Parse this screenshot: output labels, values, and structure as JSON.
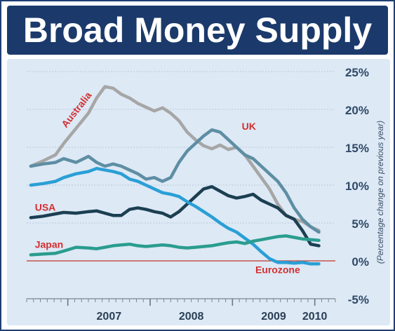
{
  "title": "Broad Money Supply",
  "chart_data": {
    "type": "line",
    "title": "Broad Money Supply",
    "xlabel": "",
    "ylabel": "(Percentage change on previous year)",
    "x_ticks": [
      "2007",
      "2008",
      "2009",
      "2010"
    ],
    "y_ticks": [
      "25%",
      "20%",
      "15%",
      "10%",
      "5%",
      "0%",
      "-5%"
    ],
    "ylim": [
      -5,
      25
    ],
    "xlim": [
      2006.5,
      2010.25
    ],
    "grid": "horizontal dashed",
    "zero_line_color": "#c0392b",
    "series": [
      {
        "name": "Australia",
        "color": "#a6a6a6",
        "label_color": "#d32f2f",
        "x": [
          2006.55,
          2006.7,
          2006.85,
          2006.95,
          2007.1,
          2007.25,
          2007.35,
          2007.45,
          2007.55,
          2007.65,
          2007.75,
          2007.85,
          2007.95,
          2008.05,
          2008.15,
          2008.25,
          2008.35,
          2008.45,
          2008.55,
          2008.65,
          2008.75,
          2008.85,
          2008.95,
          2009.05,
          2009.15,
          2009.25,
          2009.35,
          2009.45,
          2009.55,
          2009.65,
          2009.75,
          2009.85,
          2009.95,
          2010.05
        ],
        "values": [
          12.5,
          13.2,
          14.0,
          15.5,
          17.5,
          19.5,
          21.5,
          23.0,
          22.8,
          22.0,
          21.5,
          20.8,
          20.3,
          19.8,
          20.2,
          19.5,
          18.5,
          17.0,
          16.0,
          15.2,
          14.8,
          15.3,
          14.7,
          15.0,
          14.0,
          12.5,
          11.0,
          9.5,
          7.5,
          6.0,
          5.5,
          5.2,
          4.5,
          4.0
        ]
      },
      {
        "name": "UK",
        "color": "#5e8ea3",
        "label_color": "#d32f2f",
        "x": [
          2006.55,
          2006.7,
          2006.85,
          2006.95,
          2007.1,
          2007.25,
          2007.35,
          2007.45,
          2007.55,
          2007.65,
          2007.75,
          2007.85,
          2007.95,
          2008.05,
          2008.15,
          2008.25,
          2008.35,
          2008.45,
          2008.55,
          2008.65,
          2008.75,
          2008.85,
          2008.95,
          2009.05,
          2009.15,
          2009.25,
          2009.35,
          2009.45,
          2009.55,
          2009.65,
          2009.75,
          2009.85,
          2009.95,
          2010.05
        ],
        "values": [
          12.5,
          12.8,
          13.0,
          13.5,
          13.0,
          13.8,
          13.0,
          12.5,
          12.8,
          12.5,
          12.0,
          11.5,
          10.8,
          11.0,
          10.5,
          11.0,
          13.0,
          14.5,
          15.5,
          16.5,
          17.3,
          17.0,
          16.0,
          15.0,
          14.0,
          13.5,
          12.5,
          11.5,
          10.5,
          9.0,
          7.0,
          5.5,
          4.5,
          3.8
        ]
      },
      {
        "name": "USA",
        "color": "#1c3f52",
        "label_color": "#d32f2f",
        "x": [
          2006.55,
          2006.7,
          2006.85,
          2006.95,
          2007.1,
          2007.25,
          2007.35,
          2007.45,
          2007.55,
          2007.65,
          2007.75,
          2007.85,
          2007.95,
          2008.05,
          2008.15,
          2008.25,
          2008.35,
          2008.45,
          2008.55,
          2008.65,
          2008.75,
          2008.85,
          2008.95,
          2009.05,
          2009.15,
          2009.25,
          2009.35,
          2009.45,
          2009.55,
          2009.65,
          2009.75,
          2009.85,
          2009.95,
          2010.05
        ],
        "values": [
          5.7,
          5.9,
          6.2,
          6.4,
          6.3,
          6.5,
          6.6,
          6.3,
          6.0,
          6.0,
          6.8,
          7.0,
          6.8,
          6.5,
          6.3,
          5.8,
          6.5,
          7.5,
          8.5,
          9.5,
          9.8,
          9.2,
          8.6,
          8.3,
          8.5,
          8.8,
          8.0,
          7.5,
          7.0,
          6.0,
          5.5,
          4.0,
          2.2,
          2.0
        ]
      },
      {
        "name": "Eurozone",
        "color": "#2a9fd6",
        "label_color": "#d32f2f",
        "x": [
          2006.55,
          2006.7,
          2006.85,
          2006.95,
          2007.1,
          2007.25,
          2007.35,
          2007.45,
          2007.55,
          2007.65,
          2007.75,
          2007.85,
          2007.95,
          2008.05,
          2008.15,
          2008.25,
          2008.35,
          2008.45,
          2008.55,
          2008.65,
          2008.75,
          2008.85,
          2008.95,
          2009.05,
          2009.15,
          2009.25,
          2009.35,
          2009.45,
          2009.55,
          2009.65,
          2009.75,
          2009.85,
          2009.95,
          2010.05
        ],
        "values": [
          10.0,
          10.2,
          10.5,
          11.0,
          11.5,
          11.8,
          12.2,
          12.0,
          11.8,
          11.5,
          10.8,
          10.5,
          10.0,
          9.5,
          9.0,
          8.8,
          8.5,
          7.8,
          7.2,
          6.5,
          5.8,
          5.0,
          4.3,
          3.8,
          3.0,
          2.2,
          1.2,
          0.3,
          -0.2,
          -0.2,
          -0.3,
          -0.2,
          -0.4,
          -0.4
        ]
      },
      {
        "name": "Japan",
        "color": "#2a9d8f",
        "label_color": "#d32f2f",
        "x": [
          2006.55,
          2006.7,
          2006.85,
          2006.95,
          2007.1,
          2007.25,
          2007.35,
          2007.45,
          2007.55,
          2007.65,
          2007.75,
          2007.85,
          2007.95,
          2008.05,
          2008.15,
          2008.25,
          2008.35,
          2008.45,
          2008.55,
          2008.65,
          2008.75,
          2008.85,
          2008.95,
          2009.05,
          2009.15,
          2009.25,
          2009.35,
          2009.45,
          2009.55,
          2009.65,
          2009.75,
          2009.85,
          2009.95,
          2010.05
        ],
        "values": [
          0.8,
          0.9,
          1.0,
          1.3,
          1.8,
          1.7,
          1.6,
          1.8,
          2.0,
          2.1,
          2.2,
          2.0,
          1.9,
          2.0,
          2.1,
          2.0,
          1.8,
          1.7,
          1.8,
          1.9,
          2.0,
          2.2,
          2.4,
          2.5,
          2.3,
          2.6,
          2.8,
          3.0,
          3.2,
          3.3,
          3.1,
          2.9,
          2.8,
          2.7
        ]
      }
    ]
  }
}
